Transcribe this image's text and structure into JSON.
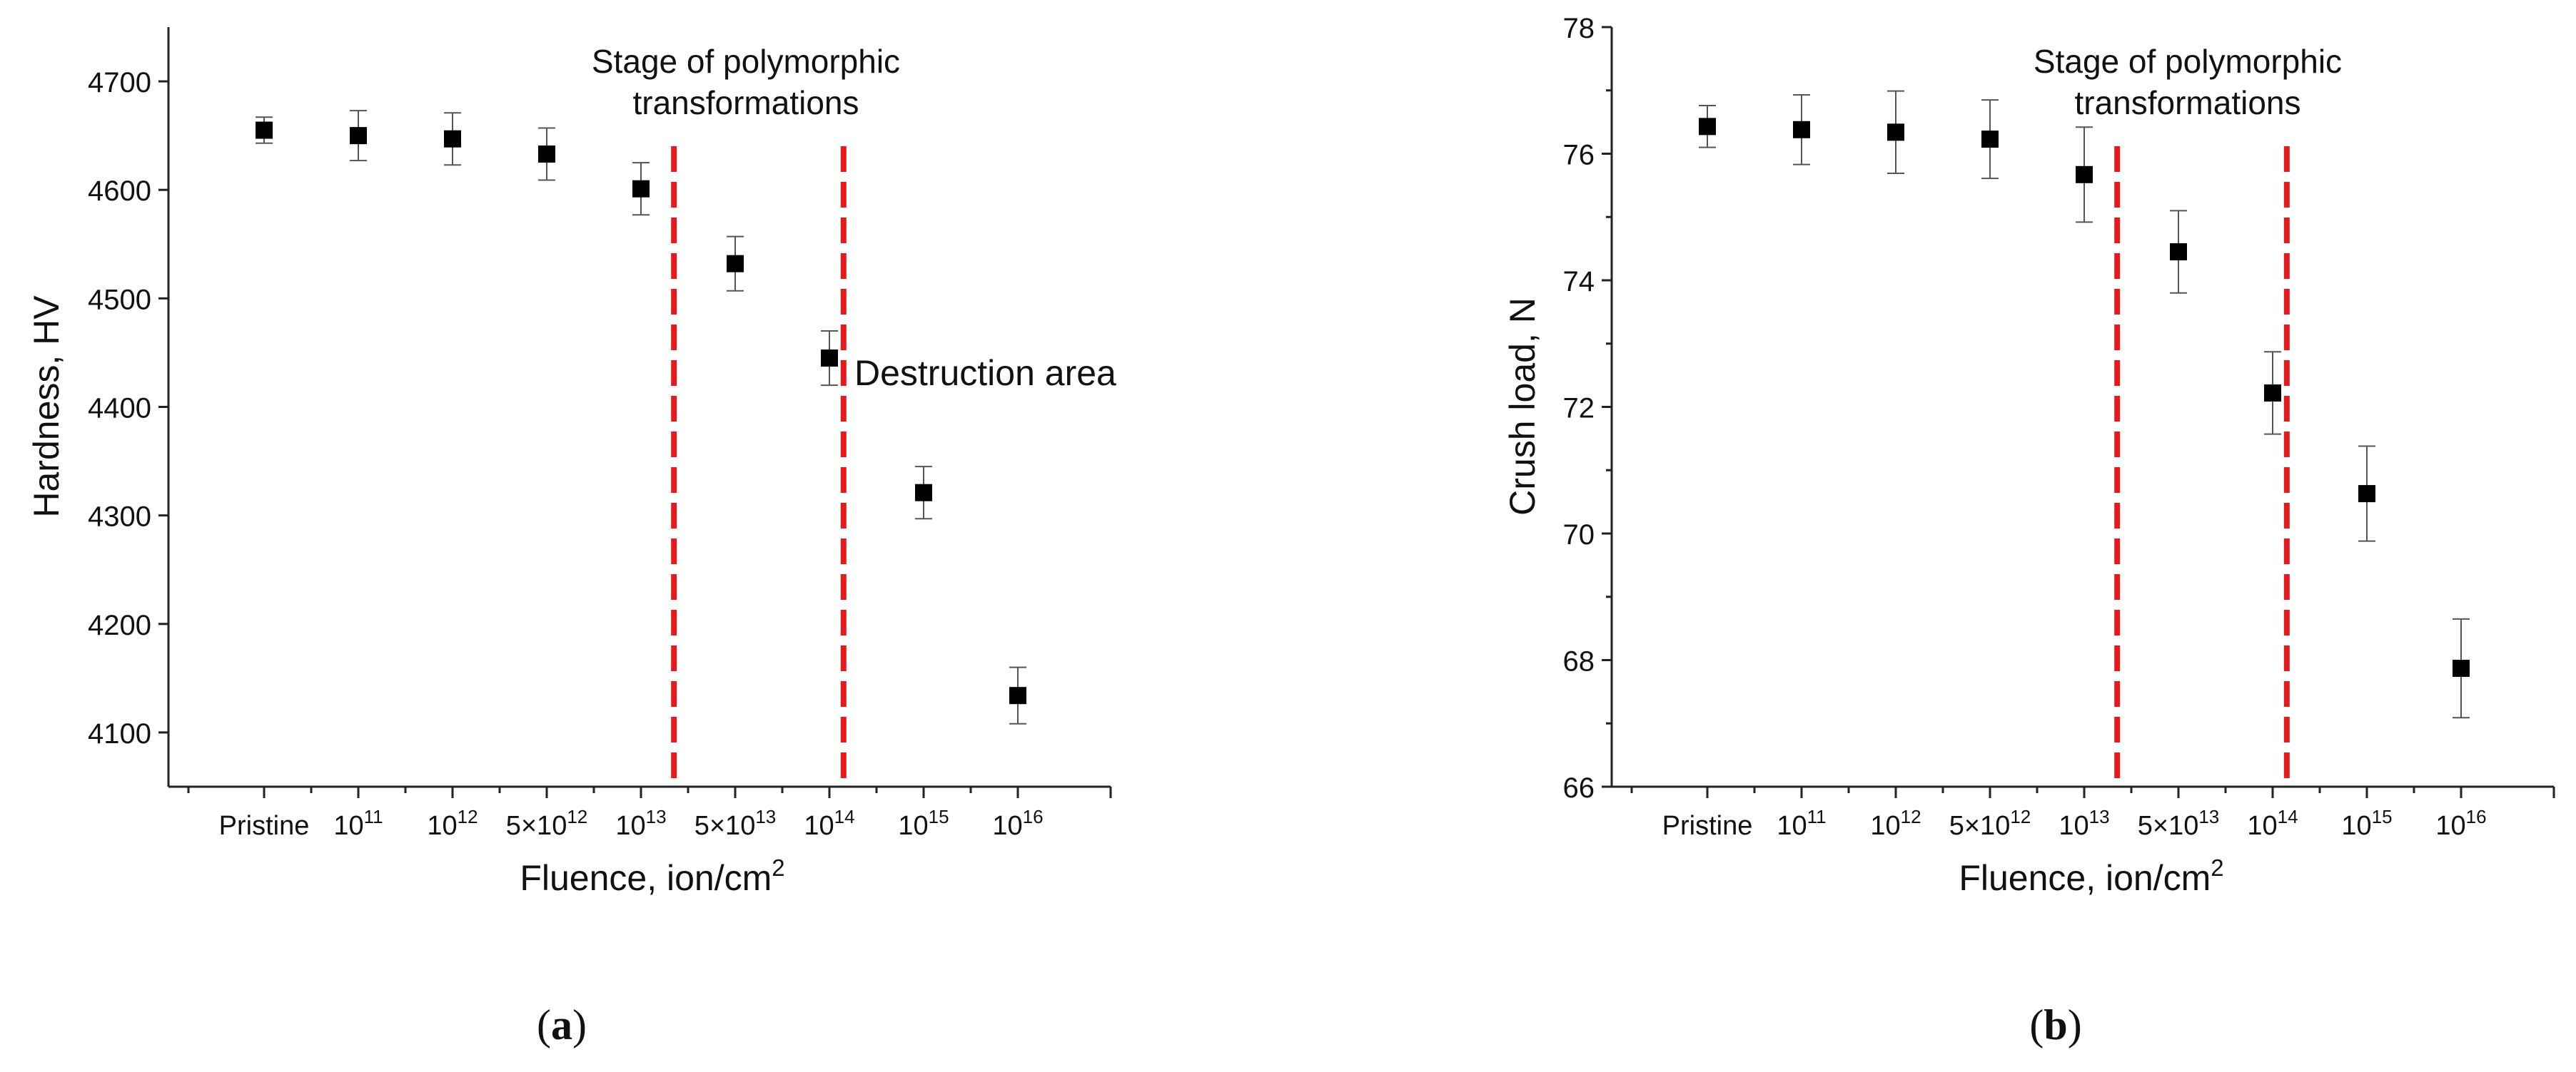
{
  "chart_data": [
    {
      "type": "scatter",
      "panel_label": "(a)",
      "panel_letter": "a",
      "ylabel": "Hardness, HV",
      "xlabel": "Fluence, ion/cm",
      "xlabel_sup": "2",
      "categories": [
        {
          "base": "Pristine",
          "sup": ""
        },
        {
          "base": "10",
          "sup": "11"
        },
        {
          "base": "10",
          "sup": "12"
        },
        {
          "base": "5×10",
          "sup": "12"
        },
        {
          "base": "10",
          "sup": "13"
        },
        {
          "base": "5×10",
          "sup": "13"
        },
        {
          "base": "10",
          "sup": "14"
        },
        {
          "base": "10",
          "sup": "15"
        },
        {
          "base": "10",
          "sup": "16"
        }
      ],
      "values": [
        4655,
        4650,
        4647,
        4633,
        4601,
        4532,
        4445,
        4321,
        4134
      ],
      "errors": [
        12,
        23,
        24,
        24,
        24,
        25,
        25,
        24,
        26
      ],
      "ylim": [
        4050,
        4750
      ],
      "yticks": [
        4100,
        4200,
        4300,
        4400,
        4500,
        4600,
        4700
      ],
      "ytick_labels": [
        "4100",
        "4200",
        "4300",
        "4400",
        "4500",
        "4600",
        "4700"
      ],
      "vlines_at": [
        4.35,
        6.15
      ],
      "vline_color": "#e41a1c",
      "marker_color": "#000000",
      "annotations": {
        "stage_line1": "Stage of polymorphic",
        "stage_line2": "transformations",
        "destruction": "Destruction area"
      }
    },
    {
      "type": "scatter",
      "panel_label": "(b)",
      "panel_letter": "b",
      "ylabel": "Crush load, N",
      "xlabel": "Fluence, ion/cm",
      "xlabel_sup": "2",
      "categories": [
        {
          "base": "Pristine",
          "sup": ""
        },
        {
          "base": "10",
          "sup": "11"
        },
        {
          "base": "10",
          "sup": "12"
        },
        {
          "base": "5×10",
          "sup": "12"
        },
        {
          "base": "10",
          "sup": "13"
        },
        {
          "base": "5×10",
          "sup": "13"
        },
        {
          "base": "10",
          "sup": "14"
        },
        {
          "base": "10",
          "sup": "15"
        },
        {
          "base": "10",
          "sup": "16"
        }
      ],
      "values": [
        76.43,
        76.38,
        76.34,
        76.23,
        75.67,
        74.45,
        72.22,
        70.63,
        67.87
      ],
      "errors": [
        0.33,
        0.55,
        0.65,
        0.62,
        0.75,
        0.65,
        0.65,
        0.75,
        0.78
      ],
      "ylim": [
        66,
        78
      ],
      "yticks": [
        66,
        68,
        70,
        72,
        74,
        76,
        78
      ],
      "ytick_labels": [
        "66",
        "68",
        "70",
        "72",
        "74",
        "76",
        "78"
      ],
      "vlines_at": [
        4.35,
        6.15
      ],
      "vline_color": "#e41a1c",
      "marker_color": "#000000",
      "annotations": {
        "stage_line1": "Stage of polymorphic",
        "stage_line2": "transformations"
      }
    }
  ]
}
